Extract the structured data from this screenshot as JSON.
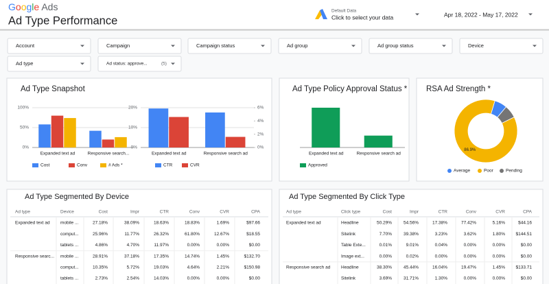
{
  "header": {
    "logo": "Google Ads",
    "title": "Ad Type Performance",
    "data_source": {
      "label": "Default Data",
      "action": "Click to select your data"
    },
    "date_range": "Apr 18, 2022 - May 17, 2022"
  },
  "filters": [
    "Account",
    "Campaign",
    "Campaign status",
    "Ad group",
    "Ad group status",
    "Device",
    "Ad type"
  ],
  "status_filter": {
    "label": "Ad status: approve...",
    "count": "(5)"
  },
  "panels": {
    "snapshot": "Ad Type Snapshot",
    "policy": "Ad Type Policy Approval Status *",
    "strength": "RSA Ad Strength *"
  },
  "chart_data": [
    {
      "type": "bar",
      "categories": [
        "Expanded text ad",
        "Responsive search..."
      ],
      "series": [
        {
          "name": "Cost",
          "color": "#4285f4",
          "values": [
            58,
            42
          ]
        },
        {
          "name": "Conv",
          "color": "#db4437",
          "values": [
            80,
            20
          ]
        },
        {
          "name": "# Ads *",
          "color": "#f4b400",
          "values": [
            74,
            26
          ]
        }
      ],
      "ylim": [
        0,
        100
      ],
      "yticks": [
        {
          "value": 0,
          "label": "0%"
        },
        {
          "value": 50,
          "label": "50%"
        },
        {
          "value": 100,
          "label": "100%"
        }
      ],
      "grid": true
    },
    {
      "type": "bar",
      "categories": [
        "Expanded text ad",
        "Responsive search ad"
      ],
      "series": [
        {
          "name": "CTR",
          "color": "#4285f4",
          "values": [
            19.6,
            17.6
          ]
        },
        {
          "name": "CVR",
          "color": "#db4437",
          "values": [
            4.6,
            1.6
          ],
          "axis": "y2"
        }
      ],
      "ylim": [
        0,
        20
      ],
      "yticks": [
        {
          "value": 0,
          "label": "0%"
        },
        {
          "value": 10,
          "label": "10%"
        },
        {
          "value": 20,
          "label": "20%"
        }
      ],
      "y2lim": [
        0,
        6
      ],
      "y2ticks": [
        {
          "value": 0,
          "label": "0%"
        },
        {
          "value": 2,
          "label": "2%"
        },
        {
          "value": 4,
          "label": "4%"
        },
        {
          "value": 6,
          "label": "6%"
        }
      ],
      "grid": true
    },
    {
      "type": "bar",
      "categories": [
        "Expanded text ad",
        "Responsive search ad"
      ],
      "series": [
        {
          "name": "Approved",
          "color": "#0f9d58",
          "values": [
            77,
            23
          ]
        }
      ],
      "grid": false
    },
    {
      "type": "pie",
      "donut": true,
      "categories": [
        "Average",
        "Poor",
        "Pending"
      ],
      "values": [
        6.5,
        86.9,
        6.6
      ],
      "value_labels": [
        null,
        "86.9%",
        null
      ],
      "colors": [
        "#4285f4",
        "#f4b400",
        "#757575"
      ]
    }
  ],
  "tables": [
    {
      "title": "Ad Type Segmented By Device",
      "columns": [
        "Ad type",
        "Device",
        "Cost",
        "Impr",
        "CTR",
        "Conv",
        "CVR",
        "CPA"
      ],
      "rows": [
        {
          "group": "Expanded text ad",
          "cells": [
            "mobile ...",
            "27.18%",
            "38.09%",
            "18.63%",
            "18.83%",
            "1.69%",
            "$97.66"
          ]
        },
        {
          "cells": [
            "comput...",
            "25.96%",
            "11.77%",
            "26.32%",
            "61.80%",
            "12.67%",
            "$18.55"
          ]
        },
        {
          "cells": [
            "tablets ...",
            "4.86%",
            "4.70%",
            "11.97%",
            "0.00%",
            "0.00%",
            "$0.00"
          ]
        },
        {
          "group": "Responsive searc...",
          "cells": [
            "mobile ...",
            "28.91%",
            "37.18%",
            "17.35%",
            "14.74%",
            "1.45%",
            "$132.70"
          ]
        },
        {
          "cells": [
            "comput...",
            "10.35%",
            "5.72%",
            "19.03%",
            "4.64%",
            "2.21%",
            "$150.98"
          ]
        },
        {
          "cells": [
            "tablets ...",
            "2.73%",
            "2.54%",
            "14.03%",
            "0.00%",
            "0.00%",
            "$0.00"
          ]
        }
      ]
    },
    {
      "title": "Ad Type Segmented By Click Type",
      "columns": [
        "Ad type",
        "Click type",
        "Cost",
        "Impr",
        "CTR",
        "Conv",
        "CVR",
        "CPA"
      ],
      "rows": [
        {
          "group": "Expanded text ad",
          "cells": [
            "Headline",
            "50.29%",
            "54.56%",
            "17.38%",
            "77.42%",
            "5.16%",
            "$44.16"
          ]
        },
        {
          "cells": [
            "Sitelink",
            "7.70%",
            "39.38%",
            "3.23%",
            "3.62%",
            "1.80%",
            "$144.51"
          ]
        },
        {
          "cells": [
            "Table Exte...",
            "0.01%",
            "9.01%",
            "0.04%",
            "0.00%",
            "0.00%",
            "$0.00"
          ]
        },
        {
          "cells": [
            "Image ext...",
            "0.00%",
            "0.02%",
            "0.00%",
            "0.00%",
            "0.00%",
            "$0.00"
          ]
        },
        {
          "group": "Responsive search ad",
          "cells": [
            "Headline",
            "38.30%",
            "45.44%",
            "16.04%",
            "19.47%",
            "1.45%",
            "$133.71"
          ]
        },
        {
          "cells": [
            "Sitelink",
            "3.69%",
            "31.71%",
            "1.30%",
            "0.00%",
            "0.00%",
            "$0.00"
          ]
        }
      ]
    }
  ]
}
